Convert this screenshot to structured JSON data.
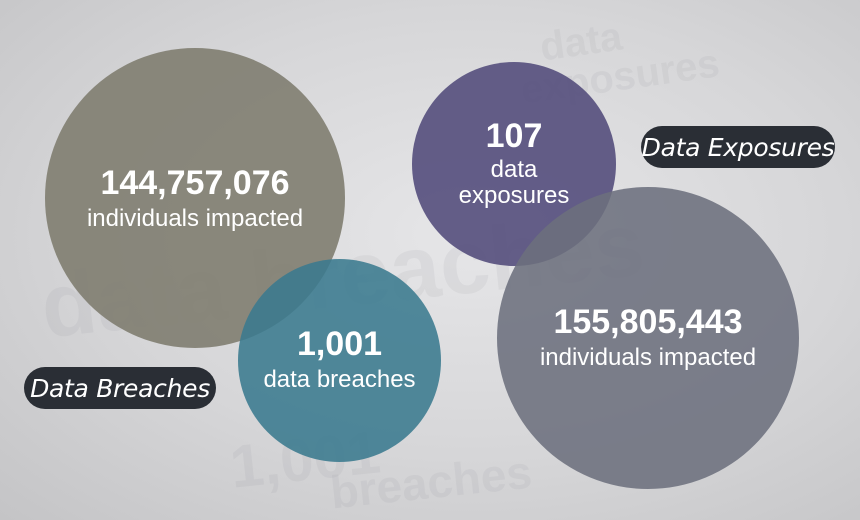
{
  "bubbles": {
    "individuals_breaches": {
      "value": "144,757,076",
      "label": "individuals impacted",
      "color": "#807d70"
    },
    "breaches": {
      "value": "1,001",
      "label": "data breaches",
      "color": "#3a7a8e"
    },
    "exposures": {
      "value": "107",
      "label": "data exposures",
      "color": "#544e7c"
    },
    "individuals_exposures": {
      "value": "155,805,443",
      "label": "individuals impacted",
      "color": "#6c707d"
    }
  },
  "labels": {
    "data_exposures": "Data Exposures",
    "data_breaches": "Data Breaches"
  },
  "colors": {
    "pill_background": "#2a2e35",
    "page_background": "#dcdcde"
  }
}
